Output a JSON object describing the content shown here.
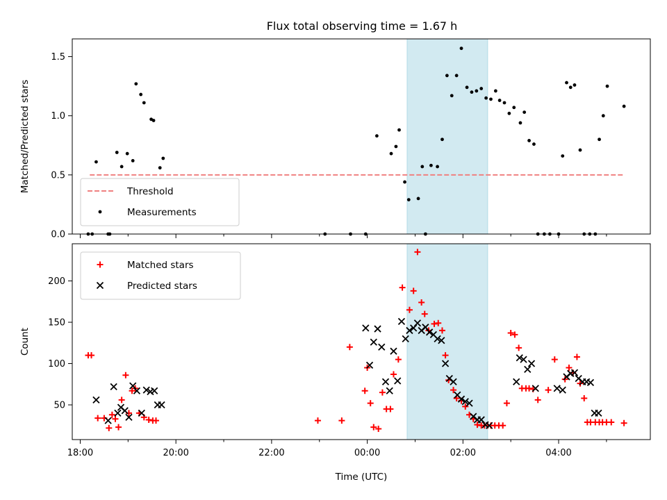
{
  "chart_data": [
    {
      "type": "scatter",
      "title": "Flux total observing time = 1.67 h",
      "ylabel": "Matched/Predicted stars",
      "xlabel": "",
      "xlim": [
        "17:50",
        "05:55"
      ],
      "ylim": [
        0,
        1.65
      ],
      "yticks": [
        0.0,
        0.5,
        1.0,
        1.5
      ],
      "ytick_labels": [
        "0.0",
        "0.5",
        "1.0",
        "1.5"
      ],
      "xticks": [
        "18:00",
        "20:00",
        "22:00",
        "00:00",
        "02:00",
        "04:00"
      ],
      "shaded_interval": [
        "00:50",
        "02:31"
      ],
      "shaded_color": "#add8e6",
      "legend_position": "lower-left",
      "series": [
        {
          "name": "Threshold",
          "kind": "dashed-line",
          "color": "#f08080",
          "x": [
            "18:12",
            "05:23"
          ],
          "y": [
            0.5,
            0.5
          ]
        },
        {
          "name": "Measurements",
          "kind": "dot",
          "color": "#000000",
          "x": [
            "18:10",
            "18:15",
            "18:20",
            "18:35",
            "18:37",
            "18:46",
            "18:52",
            "18:59",
            "19:06",
            "19:10",
            "19:16",
            "19:20",
            "19:29",
            "19:32",
            "19:40",
            "19:44",
            "23:07",
            "23:39",
            "23:58",
            "00:12",
            "00:30",
            "00:36",
            "00:40",
            "00:47",
            "00:52",
            "01:04",
            "01:09",
            "01:13",
            "01:20",
            "01:28",
            "01:34",
            "01:40",
            "01:46",
            "01:52",
            "01:58",
            "02:05",
            "02:11",
            "02:17",
            "02:23",
            "02:29",
            "02:35",
            "02:41",
            "02:46",
            "02:52",
            "02:58",
            "03:04",
            "03:12",
            "03:17",
            "03:23",
            "03:29",
            "03:34",
            "03:42",
            "03:49",
            "04:00",
            "04:05",
            "04:10",
            "04:15",
            "04:20",
            "04:27",
            "04:32",
            "04:39",
            "04:46",
            "04:51",
            "04:56",
            "05:01",
            "05:22"
          ],
          "y": [
            0.0,
            0.0,
            0.61,
            0.0,
            0.0,
            0.69,
            0.57,
            0.68,
            0.62,
            1.27,
            1.18,
            1.11,
            0.97,
            0.96,
            0.56,
            0.64,
            0.0,
            0.0,
            0.0,
            0.83,
            0.68,
            0.74,
            0.88,
            0.44,
            0.29,
            0.3,
            0.57,
            0.0,
            0.58,
            0.57,
            0.8,
            1.34,
            1.17,
            1.34,
            1.57,
            1.24,
            1.2,
            1.21,
            1.23,
            1.15,
            1.14,
            1.21,
            1.13,
            1.11,
            1.02,
            1.07,
            0.94,
            1.03,
            0.79,
            0.76,
            0.0,
            0.0,
            0.0,
            0.0,
            0.66,
            1.28,
            1.24,
            1.26,
            0.71,
            0.0,
            0.0,
            0.0,
            0.8,
            1.0,
            1.25,
            1.08
          ]
        }
      ]
    },
    {
      "type": "scatter",
      "title": "",
      "ylabel": "Count",
      "xlabel": "Time (UTC)",
      "xlim": [
        "17:50",
        "05:55"
      ],
      "ylim": [
        8,
        245
      ],
      "yticks": [
        50,
        100,
        150,
        200
      ],
      "ytick_labels": [
        "50",
        "100",
        "150",
        "200"
      ],
      "xticks": [
        "18:00",
        "20:00",
        "22:00",
        "00:00",
        "02:00",
        "04:00"
      ],
      "shaded_interval": [
        "00:50",
        "02:31"
      ],
      "shaded_color": "#add8e6",
      "legend_position": "top-left",
      "series": [
        {
          "name": "Matched stars",
          "kind": "plus",
          "color": "#ff0000",
          "x": [
            "18:10",
            "18:14",
            "18:22",
            "18:30",
            "18:36",
            "18:40",
            "18:44",
            "18:48",
            "18:52",
            "18:57",
            "19:01",
            "19:05",
            "19:09",
            "19:14",
            "19:20",
            "19:26",
            "19:31",
            "19:35",
            "22:58",
            "23:28",
            "23:38",
            "23:57",
            "00:00",
            "00:04",
            "00:08",
            "00:14",
            "00:19",
            "00:24",
            "00:29",
            "00:33",
            "00:39",
            "00:44",
            "00:53",
            "00:58",
            "01:03",
            "01:08",
            "01:12",
            "01:17",
            "01:24",
            "01:29",
            "01:34",
            "01:38",
            "01:42",
            "01:48",
            "01:52",
            "01:58",
            "02:03",
            "02:08",
            "02:13",
            "02:18",
            "02:23",
            "02:27",
            "02:31",
            "02:35",
            "02:40",
            "02:45",
            "02:50",
            "02:55",
            "03:00",
            "03:05",
            "03:10",
            "03:14",
            "03:19",
            "03:23",
            "03:28",
            "03:34",
            "03:47",
            "03:55",
            "04:08",
            "04:13",
            "04:18",
            "04:23",
            "04:27",
            "04:32",
            "04:36",
            "04:40",
            "04:46",
            "04:51",
            "04:55",
            "05:00",
            "05:06",
            "05:22"
          ],
          "y": [
            110,
            110,
            34,
            34,
            22,
            38,
            33,
            23,
            56,
            86,
            40,
            67,
            70,
            40,
            35,
            32,
            31,
            31,
            31,
            31,
            120,
            67,
            95,
            52,
            23,
            21,
            65,
            45,
            45,
            87,
            105,
            192,
            165,
            188,
            235,
            174,
            160,
            140,
            148,
            149,
            140,
            110,
            80,
            68,
            58,
            55,
            48,
            38,
            33,
            26,
            25,
            25,
            25,
            25,
            25,
            25,
            25,
            52,
            137,
            135,
            119,
            70,
            70,
            70,
            69,
            56,
            68,
            105,
            81,
            95,
            89,
            108,
            76,
            58,
            29,
            29,
            29,
            29,
            29,
            29,
            29,
            28
          ]
        },
        {
          "name": "Predicted stars",
          "kind": "x",
          "color": "#000000",
          "x": [
            "18:20",
            "18:35",
            "18:42",
            "18:47",
            "18:51",
            "18:56",
            "19:01",
            "19:06",
            "19:11",
            "19:17",
            "19:23",
            "19:28",
            "19:33",
            "19:37",
            "19:42",
            "23:58",
            "00:03",
            "00:08",
            "00:13",
            "00:18",
            "00:23",
            "00:28",
            "00:33",
            "00:38",
            "00:43",
            "00:48",
            "00:53",
            "00:58",
            "01:03",
            "01:08",
            "01:13",
            "01:18",
            "01:23",
            "01:28",
            "01:33",
            "01:38",
            "01:43",
            "01:48",
            "01:53",
            "01:58",
            "02:03",
            "02:08",
            "02:13",
            "02:18",
            "02:23",
            "02:28",
            "02:33",
            "03:07",
            "03:11",
            "03:16",
            "03:21",
            "03:26",
            "03:31",
            "03:58",
            "04:05",
            "04:10",
            "04:15",
            "04:20",
            "04:25",
            "04:30",
            "04:35",
            "04:40",
            "04:45",
            "04:50"
          ],
          "y": [
            56,
            31,
            72,
            40,
            47,
            43,
            35,
            73,
            67,
            40,
            68,
            66,
            67,
            50,
            50,
            143,
            98,
            126,
            142,
            120,
            78,
            67,
            115,
            79,
            151,
            130,
            140,
            143,
            149,
            140,
            144,
            138,
            135,
            130,
            128,
            100,
            82,
            78,
            62,
            57,
            54,
            52,
            36,
            32,
            32,
            26,
            25,
            78,
            107,
            105,
            93,
            100,
            70,
            70,
            68,
            84,
            88,
            89,
            82,
            78,
            78,
            77,
            40,
            40
          ]
        }
      ]
    }
  ]
}
